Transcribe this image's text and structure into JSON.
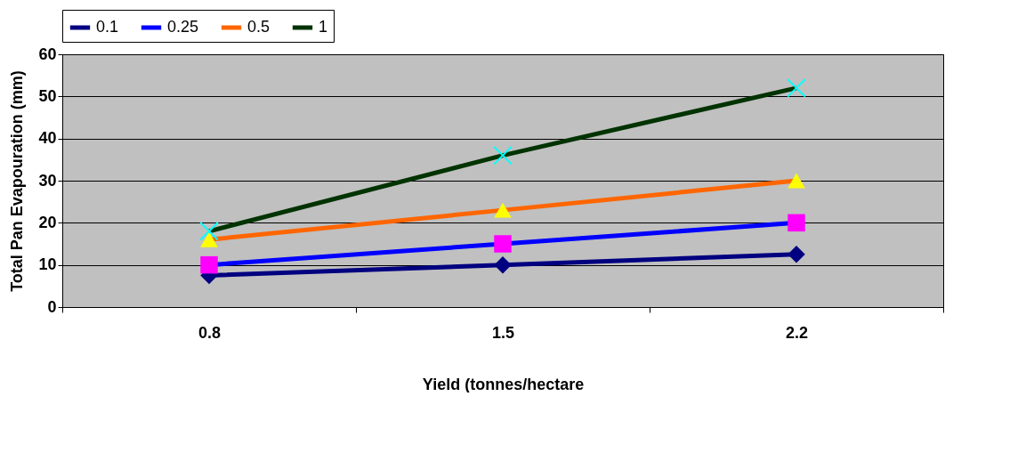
{
  "chart_data": {
    "type": "line",
    "xlabel": "Yield (tonnes/hectare",
    "ylabel": "Total Pan Evapouration (mm)",
    "categories": [
      "0.8",
      "1.5",
      "2.2"
    ],
    "series": [
      {
        "name": "0.1",
        "color": "#000080",
        "marker": "diamond",
        "colors": [
          "#000080",
          "#000080",
          "#000080"
        ],
        "values": [
          7.5,
          10,
          12.5
        ]
      },
      {
        "name": "0.25",
        "color": "#0000ff",
        "marker": "square",
        "colors": [
          "#ff00ff",
          "#ff00ff",
          "#ff00ff"
        ],
        "values": [
          10,
          15,
          20
        ]
      },
      {
        "name": "0.5",
        "color": "#ff6600",
        "marker": "triangle",
        "colors": [
          "#ffff00",
          "#ffff00",
          "#ffff00"
        ],
        "values": [
          16,
          23,
          30
        ]
      },
      {
        "name": "1",
        "color": "#003300",
        "marker": "cross",
        "colors": [
          "#00ffff",
          "#00ffff",
          "#00ffff"
        ],
        "values": [
          18,
          36,
          52
        ]
      }
    ],
    "ylim": [
      0,
      60
    ],
    "yticks": [
      0,
      10,
      20,
      30,
      40,
      50,
      60
    ],
    "grid": "y",
    "legend": "top"
  }
}
